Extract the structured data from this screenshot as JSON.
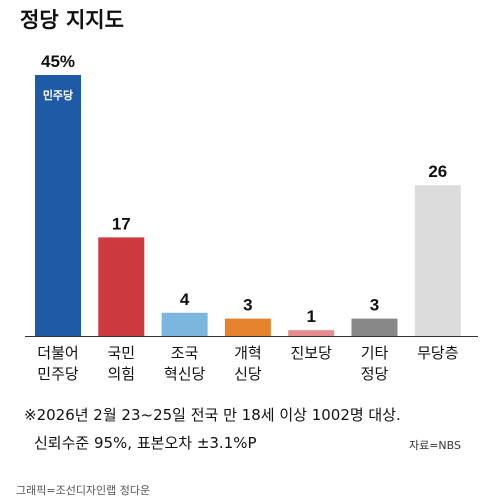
{
  "title": "정당 지지도",
  "chart_data": {
    "type": "bar",
    "categories": [
      [
        "더불어",
        "민주당"
      ],
      [
        "국민",
        "의힘"
      ],
      [
        "조국",
        "혁신당"
      ],
      [
        "개혁",
        "신당"
      ],
      [
        "진보당"
      ],
      [
        "기타",
        "정당"
      ],
      [
        "무당층"
      ]
    ],
    "series": [
      {
        "values": [
          45,
          17,
          4,
          3,
          1,
          3,
          26
        ]
      }
    ],
    "value_labels": [
      "45%",
      "17",
      "4",
      "3",
      "1",
      "3",
      "26"
    ],
    "colors": [
      "#1f5aa6",
      "#cc3a3f",
      "#7bb6df",
      "#e5822d",
      "#e58c8f",
      "#888888",
      "#dcdcdc"
    ],
    "ylim": [
      0,
      45
    ],
    "logo_text": "민주당",
    "grid": false,
    "legend": "none"
  },
  "note_line1": "※2026년 2월 23~25일 전국 만 18세 이상 1002명 대상.",
  "note_line2": "신뢰수준 95%, 표본오차 ±3.1%P",
  "source": "자료=NBS",
  "credit": "그래픽=조선디자인랩 정다운"
}
